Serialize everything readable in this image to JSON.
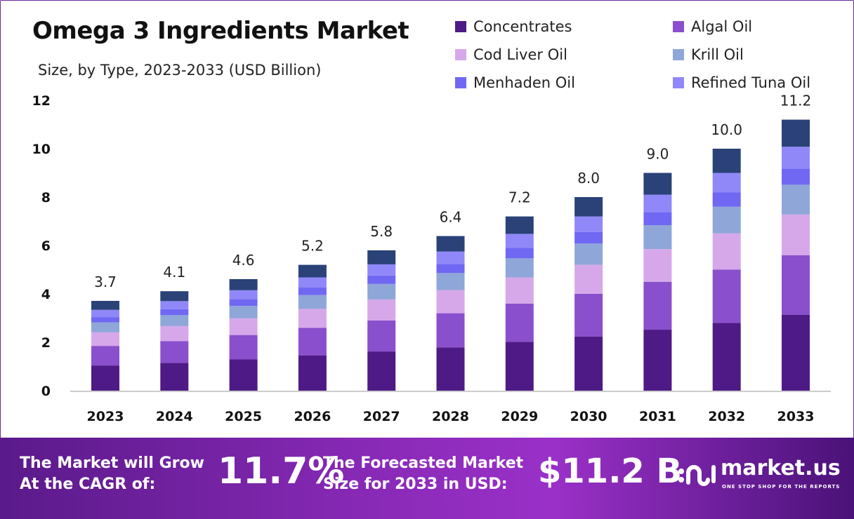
{
  "chart_data": {
    "type": "stacked-bar",
    "title": "Omega 3 Ingredients Market",
    "subtitle": "Size, by Type, 2023-2033 (USD Billion)",
    "categories": [
      "2023",
      "2024",
      "2025",
      "2026",
      "2027",
      "2028",
      "2029",
      "2030",
      "2031",
      "2032",
      "2033"
    ],
    "totals": [
      "3.7",
      "4.1",
      "4.6",
      "5.2",
      "5.8",
      "6.4",
      "7.2",
      "8.0",
      "9.0",
      "10.0",
      "11.2"
    ],
    "ylim": [
      0,
      12
    ],
    "yticks": [
      "0",
      "2",
      "4",
      "6",
      "8",
      "10",
      "12"
    ],
    "grid": false,
    "legend_placement": "top-right",
    "series": [
      {
        "name": "Concentrates",
        "color": "#4e1a86",
        "values": [
          1.04,
          1.15,
          1.29,
          1.46,
          1.62,
          1.79,
          2.02,
          2.24,
          2.52,
          2.8,
          3.14
        ]
      },
      {
        "name": "Algal Oil",
        "color": "#8a4fcc",
        "values": [
          0.81,
          0.9,
          1.01,
          1.14,
          1.28,
          1.41,
          1.58,
          1.76,
          1.98,
          2.2,
          2.46
        ]
      },
      {
        "name": "Cod Liver Oil",
        "color": "#d6a8ea",
        "values": [
          0.56,
          0.62,
          0.69,
          0.78,
          0.87,
          0.96,
          1.08,
          1.2,
          1.35,
          1.5,
          1.68
        ]
      },
      {
        "name": "Krill Oil",
        "color": "#8fa6d8",
        "values": [
          0.41,
          0.45,
          0.51,
          0.57,
          0.64,
          0.7,
          0.79,
          0.88,
          0.99,
          1.1,
          1.23
        ]
      },
      {
        "name": "Menhaden Oil",
        "color": "#7068f2",
        "values": [
          0.22,
          0.25,
          0.28,
          0.31,
          0.35,
          0.38,
          0.43,
          0.48,
          0.54,
          0.6,
          0.67
        ]
      },
      {
        "name": "Refined Tuna Oil",
        "color": "#9088f8",
        "values": [
          0.3,
          0.33,
          0.37,
          0.42,
          0.46,
          0.51,
          0.58,
          0.64,
          0.72,
          0.8,
          0.9
        ]
      },
      {
        "color": "#2a4278",
        "values": [
          0.37,
          0.41,
          0.46,
          0.52,
          0.58,
          0.64,
          0.72,
          0.8,
          0.9,
          1.0,
          1.12
        ]
      }
    ]
  },
  "footer": {
    "cagr_label_1": "The Market will Grow",
    "cagr_label_2": "At the CAGR of:",
    "cagr_value": "11.7%",
    "size_label_1": "The Forecasted Market",
    "size_label_2": "Size for 2033 in USD:",
    "size_value": "$11.2 B",
    "brand": "market.us",
    "tagline": "ONE STOP SHOP FOR THE REPORTS"
  }
}
